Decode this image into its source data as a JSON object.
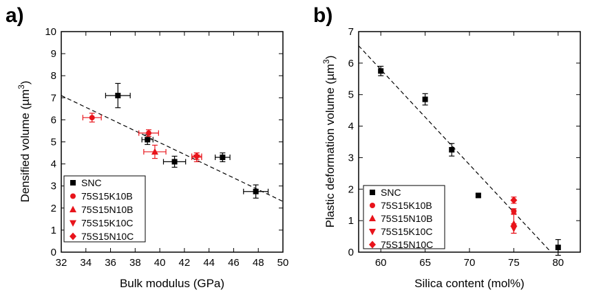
{
  "chart_data": [
    {
      "type": "scatter",
      "panel_label": "a)",
      "xlabel": "Bulk modulus (GPa)",
      "ylabel_prefix": "Densified volume (µm",
      "ylabel_sup": "3",
      "ylabel_suffix": ")",
      "xlim": [
        32,
        50
      ],
      "ylim": [
        0,
        10
      ],
      "x_ticks": [
        32,
        34,
        36,
        38,
        40,
        42,
        44,
        46,
        48,
        50
      ],
      "y_ticks": [
        0,
        1,
        2,
        3,
        4,
        5,
        6,
        7,
        8,
        9,
        10
      ],
      "legend_position": "bottom-left",
      "legend": [
        {
          "label": "SNC",
          "marker": "square",
          "color": "#000000"
        },
        {
          "label": "75S15K10B",
          "marker": "circle",
          "color": "#e8141b"
        },
        {
          "label": "75S15N10B",
          "marker": "triangle-up",
          "color": "#e8141b"
        },
        {
          "label": "75S15K10C",
          "marker": "triangle-down",
          "color": "#e8141b"
        },
        {
          "label": "75S15N10C",
          "marker": "diamond",
          "color": "#e8141b"
        }
      ],
      "series": [
        {
          "name": "SNC",
          "marker": "square",
          "color": "#000000",
          "points": [
            {
              "x": 36.6,
              "y": 7.1,
              "xerr": 1.0,
              "yerr": 0.55
            },
            {
              "x": 39.0,
              "y": 5.1,
              "xerr": 0.45,
              "yerr": 0.22
            },
            {
              "x": 41.2,
              "y": 4.1,
              "xerr": 0.9,
              "yerr": 0.25
            },
            {
              "x": 45.1,
              "y": 4.3,
              "xerr": 0.6,
              "yerr": 0.2
            },
            {
              "x": 47.8,
              "y": 2.75,
              "xerr": 1.0,
              "yerr": 0.3
            }
          ]
        },
        {
          "name": "75S15K10B",
          "marker": "circle",
          "color": "#e8141b",
          "points": [
            {
              "x": 34.5,
              "y": 6.1,
              "xerr": 0.75,
              "yerr": 0.2
            },
            {
              "x": 39.1,
              "y": 5.4,
              "xerr": 0.8,
              "yerr": 0.15
            }
          ]
        },
        {
          "name": "75S15N10B",
          "marker": "triangle-up",
          "color": "#e8141b",
          "points": [
            {
              "x": 39.6,
              "y": 4.55,
              "xerr": 0.9,
              "yerr": 0.3
            }
          ]
        },
        {
          "name": "75S15K10C",
          "marker": "triangle-down",
          "color": "#e8141b",
          "points": [
            {
              "x": 43.0,
              "y": 4.3,
              "xerr": 0.4,
              "yerr": 0.2
            }
          ]
        },
        {
          "name": "75S15N10C",
          "marker": "diamond",
          "color": "#e8141b",
          "points": [
            {
              "x": 43.0,
              "y": 4.35,
              "xerr": 0.4,
              "yerr": 0.15
            }
          ]
        }
      ],
      "fit_line": {
        "x": [
          32,
          50
        ],
        "y": [
          7.1,
          2.3
        ],
        "style": "dashed"
      }
    },
    {
      "type": "scatter",
      "panel_label": "b)",
      "xlabel": "Silica content (mol%)",
      "ylabel_prefix": "Plastic deformation volume (µm",
      "ylabel_sup": "3",
      "ylabel_suffix": ")",
      "xlim": [
        57.5,
        82.5
      ],
      "ylim": [
        0,
        7
      ],
      "x_ticks": [
        60,
        65,
        70,
        75,
        80
      ],
      "y_ticks": [
        0,
        1,
        2,
        3,
        4,
        5,
        6,
        7
      ],
      "legend_position": "bottom-left",
      "legend": [
        {
          "label": "SNC",
          "marker": "square",
          "color": "#000000"
        },
        {
          "label": "75S15K10B",
          "marker": "circle",
          "color": "#e8141b"
        },
        {
          "label": "75S15N10B",
          "marker": "triangle-up",
          "color": "#e8141b"
        },
        {
          "label": "75S15K10C",
          "marker": "triangle-down",
          "color": "#e8141b"
        },
        {
          "label": "75S15N10C",
          "marker": "diamond",
          "color": "#e8141b"
        }
      ],
      "series": [
        {
          "name": "SNC",
          "marker": "square",
          "color": "#000000",
          "points": [
            {
              "x": 60,
              "y": 5.75,
              "xerr": 0,
              "yerr": 0.15
            },
            {
              "x": 65,
              "y": 4.85,
              "xerr": 0,
              "yerr": 0.18
            },
            {
              "x": 68,
              "y": 3.25,
              "xerr": 0,
              "yerr": 0.2
            },
            {
              "x": 71,
              "y": 1.8,
              "xerr": 0,
              "yerr": 0.05
            },
            {
              "x": 80,
              "y": 0.15,
              "xerr": 0,
              "yerr": 0.25
            }
          ]
        },
        {
          "name": "75S15K10B",
          "marker": "circle",
          "color": "#e8141b",
          "points": [
            {
              "x": 75,
              "y": 1.3,
              "xerr": 0,
              "yerr": 0.08
            }
          ]
        },
        {
          "name": "75S15N10B",
          "marker": "triangle-up",
          "color": "#e8141b",
          "points": [
            {
              "x": 75,
              "y": 0.9,
              "xerr": 0,
              "yerr": 0.3
            }
          ]
        },
        {
          "name": "75S15K10C",
          "marker": "triangle-down",
          "color": "#e8141b",
          "points": [
            {
              "x": 75,
              "y": 0.75,
              "xerr": 0,
              "yerr": 0.15
            }
          ]
        },
        {
          "name": "75S15N10C",
          "marker": "diamond",
          "color": "#e8141b",
          "points": [
            {
              "x": 75,
              "y": 1.65,
              "xerr": 0,
              "yerr": 0.1
            }
          ]
        }
      ],
      "fit_line": {
        "x": [
          57.5,
          79.2
        ],
        "y": [
          6.55,
          0
        ],
        "style": "dashed"
      }
    }
  ]
}
